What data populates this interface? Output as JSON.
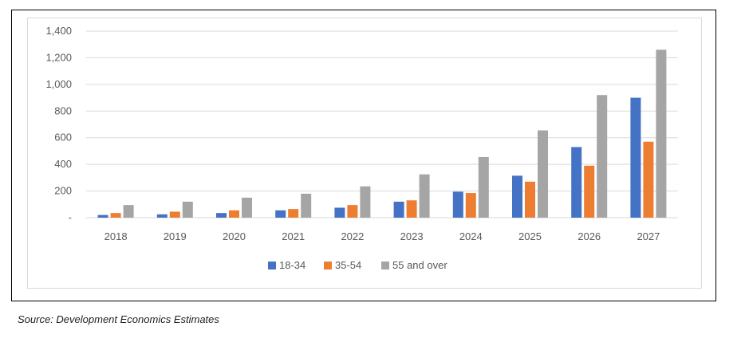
{
  "chart_data": {
    "type": "bar",
    "categories": [
      "2018",
      "2019",
      "2020",
      "2021",
      "2022",
      "2023",
      "2024",
      "2025",
      "2026",
      "2027"
    ],
    "series": [
      {
        "name": "18-34",
        "color": "#4472C4",
        "values": [
          20,
          25,
          35,
          55,
          75,
          120,
          195,
          315,
          530,
          900
        ]
      },
      {
        "name": "35-54",
        "color": "#ED7D31",
        "values": [
          35,
          45,
          55,
          65,
          95,
          130,
          185,
          270,
          390,
          570
        ]
      },
      {
        "name": "55 and over",
        "color": "#A5A5A5",
        "values": [
          95,
          120,
          150,
          180,
          235,
          325,
          455,
          655,
          920,
          1260
        ]
      }
    ],
    "ylim": [
      0,
      1400
    ],
    "yticks": [
      0,
      200,
      400,
      600,
      800,
      1000,
      1200,
      1400
    ],
    "ytick_labels": [
      "-",
      "200",
      "400",
      "600",
      "800",
      "1,000",
      "1,200",
      "1,400"
    ],
    "grid": true,
    "legend_position": "bottom"
  },
  "source": "Source: Development Economics Estimates"
}
